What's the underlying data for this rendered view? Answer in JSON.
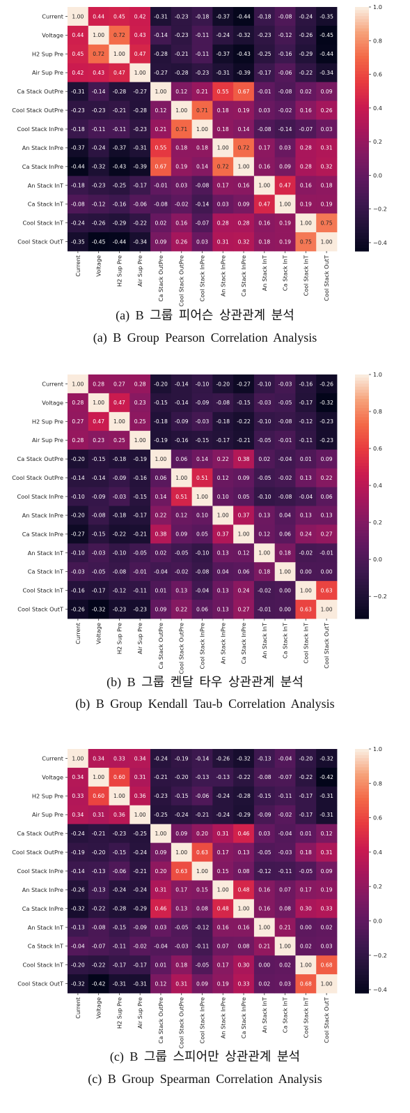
{
  "panels": [
    {
      "caption_ko": "(a) B 그룹 피어슨 상관관계 분석",
      "caption_en": "(a) B Group Pearson Correlation Analysis"
    },
    {
      "caption_ko": "(b) B 그룹 켄달 타우 상관관계 분석",
      "caption_en": "(b) B Group Kendall Tau-b Correlation Analysis"
    },
    {
      "caption_ko": "(c) B 그룹 스피어만 상관관계 분석",
      "caption_en": "(c) B Group Spearman Correlation Analysis"
    }
  ],
  "chart_data": [
    {
      "type": "heatmap",
      "title": "",
      "labels": [
        "Current",
        "Voltage",
        "H2 Sup Pre",
        "Air Sup Pre",
        "Ca Stack OutPre",
        "Cool Stack OutPre",
        "Cool Stack InPre",
        "An Stack InPre",
        "Ca Stack InPre",
        "An Stack InT",
        "Ca Stack InT",
        "Cool Stack InT",
        "Cool Stack OutT"
      ],
      "matrix": [
        [
          1.0,
          0.44,
          0.45,
          0.42,
          -0.31,
          -0.23,
          -0.18,
          -0.37,
          -0.44,
          -0.18,
          -0.08,
          -0.24,
          -0.35
        ],
        [
          0.44,
          1.0,
          0.72,
          0.43,
          -0.14,
          -0.23,
          -0.11,
          -0.24,
          -0.32,
          -0.23,
          -0.12,
          -0.26,
          -0.45
        ],
        [
          0.45,
          0.72,
          1.0,
          0.47,
          -0.28,
          -0.21,
          -0.11,
          -0.37,
          -0.43,
          -0.25,
          -0.16,
          -0.29,
          -0.44
        ],
        [
          0.42,
          0.43,
          0.47,
          1.0,
          -0.27,
          -0.28,
          -0.23,
          -0.31,
          -0.39,
          -0.17,
          -0.06,
          -0.22,
          -0.34
        ],
        [
          -0.31,
          -0.14,
          -0.28,
          -0.27,
          1.0,
          0.12,
          0.21,
          0.55,
          0.67,
          -0.01,
          -0.08,
          0.02,
          0.09
        ],
        [
          -0.23,
          -0.23,
          -0.21,
          -0.28,
          0.12,
          1.0,
          0.71,
          0.18,
          0.19,
          0.03,
          -0.02,
          0.16,
          0.26
        ],
        [
          -0.18,
          -0.11,
          -0.11,
          -0.23,
          0.21,
          0.71,
          1.0,
          0.18,
          0.14,
          -0.08,
          -0.14,
          -0.07,
          0.03
        ],
        [
          -0.37,
          -0.24,
          -0.37,
          -0.31,
          0.55,
          0.18,
          0.18,
          1.0,
          0.72,
          0.17,
          0.03,
          0.28,
          0.31
        ],
        [
          -0.44,
          -0.32,
          -0.43,
          -0.39,
          0.67,
          0.19,
          0.14,
          0.72,
          1.0,
          0.16,
          0.09,
          0.28,
          0.32
        ],
        [
          -0.18,
          -0.23,
          -0.25,
          -0.17,
          -0.01,
          0.03,
          -0.08,
          0.17,
          0.16,
          1.0,
          0.47,
          0.16,
          0.18
        ],
        [
          -0.08,
          -0.12,
          -0.16,
          -0.06,
          -0.08,
          -0.02,
          -0.14,
          0.03,
          0.09,
          0.47,
          1.0,
          0.19,
          0.19
        ],
        [
          -0.24,
          -0.26,
          -0.29,
          -0.22,
          0.02,
          0.16,
          -0.07,
          0.28,
          0.28,
          0.16,
          0.19,
          1.0,
          0.75
        ],
        [
          -0.35,
          -0.45,
          -0.44,
          -0.34,
          0.09,
          0.26,
          0.03,
          0.31,
          0.32,
          0.18,
          0.19,
          0.75,
          1.0
        ]
      ],
      "colorbar": {
        "vmin": -0.45,
        "vmax": 1.0,
        "ticks": [
          1.0,
          0.8,
          0.6,
          0.4,
          0.2,
          0.0,
          -0.2,
          -0.4
        ]
      },
      "colormap": "rocket"
    },
    {
      "type": "heatmap",
      "title": "",
      "labels": [
        "Current",
        "Voltage",
        "H2 Sup Pre",
        "Air Sup Pre",
        "Ca Stack OutPre",
        "Cool Stack OutPre",
        "Cool Stack InPre",
        "An Stack InPre",
        "Ca Stack InPre",
        "An Stack InT",
        "Ca Stack InT",
        "Cool Stack InT",
        "Cool Stack OutT"
      ],
      "matrix": [
        [
          1.0,
          0.28,
          0.27,
          0.28,
          -0.2,
          -0.14,
          -0.1,
          -0.2,
          -0.27,
          -0.1,
          -0.03,
          -0.16,
          -0.26
        ],
        [
          0.28,
          1.0,
          0.47,
          0.23,
          -0.15,
          -0.14,
          -0.09,
          -0.08,
          -0.15,
          -0.03,
          -0.05,
          -0.17,
          -0.32
        ],
        [
          0.27,
          0.47,
          1.0,
          0.25,
          -0.18,
          -0.09,
          -0.03,
          -0.18,
          -0.22,
          -0.1,
          -0.08,
          -0.12,
          -0.23
        ],
        [
          0.28,
          0.23,
          0.25,
          1.0,
          -0.19,
          -0.16,
          -0.15,
          -0.17,
          -0.21,
          -0.05,
          -0.01,
          -0.11,
          -0.23
        ],
        [
          -0.2,
          -0.15,
          -0.18,
          -0.19,
          1.0,
          0.06,
          0.14,
          0.22,
          0.38,
          0.02,
          -0.04,
          0.01,
          0.09
        ],
        [
          -0.14,
          -0.14,
          -0.09,
          -0.16,
          0.06,
          1.0,
          0.51,
          0.12,
          0.09,
          -0.05,
          -0.02,
          0.13,
          0.22
        ],
        [
          -0.1,
          -0.09,
          -0.03,
          -0.15,
          0.14,
          0.51,
          1.0,
          0.1,
          0.05,
          -0.1,
          -0.08,
          -0.04,
          0.06
        ],
        [
          -0.2,
          -0.08,
          -0.18,
          -0.17,
          0.22,
          0.12,
          0.1,
          1.0,
          0.37,
          0.13,
          0.04,
          0.13,
          0.13
        ],
        [
          -0.27,
          -0.15,
          -0.22,
          -0.21,
          0.38,
          0.09,
          0.05,
          0.37,
          1.0,
          0.12,
          0.06,
          0.24,
          0.27
        ],
        [
          -0.1,
          -0.03,
          -0.1,
          -0.05,
          0.02,
          -0.05,
          -0.1,
          0.13,
          0.12,
          1.0,
          0.18,
          -0.02,
          -0.01
        ],
        [
          -0.03,
          -0.05,
          -0.08,
          -0.01,
          -0.04,
          -0.02,
          -0.08,
          0.04,
          0.06,
          0.18,
          1.0,
          0.0,
          0.0
        ],
        [
          -0.16,
          -0.17,
          -0.12,
          -0.11,
          0.01,
          0.13,
          -0.04,
          0.13,
          0.24,
          -0.02,
          0.0,
          1.0,
          0.63
        ],
        [
          -0.26,
          -0.32,
          -0.23,
          -0.23,
          0.09,
          0.22,
          0.06,
          0.13,
          0.27,
          -0.01,
          0.0,
          0.63,
          1.0
        ]
      ],
      "colorbar": {
        "vmin": -0.32,
        "vmax": 1.0,
        "ticks": [
          1.0,
          0.8,
          0.6,
          0.4,
          0.2,
          0.0,
          -0.2
        ]
      },
      "colormap": "rocket"
    },
    {
      "type": "heatmap",
      "title": "",
      "labels": [
        "Current",
        "Voltage",
        "H2 Sup Pre",
        "Air Sup Pre",
        "Ca Stack OutPre",
        "Cool Stack OutPre",
        "Cool Stack InPre",
        "An Stack InPre",
        "Ca Stack InPre",
        "An Stack InT",
        "Ca Stack InT",
        "Cool Stack InT",
        "Cool Stack OutT"
      ],
      "matrix": [
        [
          1.0,
          0.34,
          0.33,
          0.34,
          -0.24,
          -0.19,
          -0.14,
          -0.26,
          -0.32,
          -0.13,
          -0.04,
          -0.2,
          -0.32
        ],
        [
          0.34,
          1.0,
          0.6,
          0.31,
          -0.21,
          -0.2,
          -0.13,
          -0.13,
          -0.22,
          -0.08,
          -0.07,
          -0.22,
          -0.42
        ],
        [
          0.33,
          0.6,
          1.0,
          0.36,
          -0.23,
          -0.15,
          -0.06,
          -0.24,
          -0.28,
          -0.15,
          -0.11,
          -0.17,
          -0.31
        ],
        [
          0.34,
          0.31,
          0.36,
          1.0,
          -0.25,
          -0.24,
          -0.21,
          -0.24,
          -0.29,
          -0.09,
          -0.02,
          -0.17,
          -0.31
        ],
        [
          -0.24,
          -0.21,
          -0.23,
          -0.25,
          1.0,
          0.09,
          0.2,
          0.31,
          0.46,
          0.03,
          -0.04,
          0.01,
          0.12
        ],
        [
          -0.19,
          -0.2,
          -0.15,
          -0.24,
          0.09,
          1.0,
          0.63,
          0.17,
          0.13,
          -0.05,
          -0.03,
          0.18,
          0.31
        ],
        [
          -0.14,
          -0.13,
          -0.06,
          -0.21,
          0.2,
          0.63,
          1.0,
          0.15,
          0.08,
          -0.12,
          -0.11,
          -0.05,
          0.09
        ],
        [
          -0.26,
          -0.13,
          -0.24,
          -0.24,
          0.31,
          0.17,
          0.15,
          1.0,
          0.48,
          0.16,
          0.07,
          0.17,
          0.19
        ],
        [
          -0.32,
          -0.22,
          -0.28,
          -0.29,
          0.46,
          0.13,
          0.08,
          0.48,
          1.0,
          0.16,
          0.08,
          0.3,
          0.33
        ],
        [
          -0.13,
          -0.08,
          -0.15,
          -0.09,
          0.03,
          -0.05,
          -0.12,
          0.16,
          0.16,
          1.0,
          0.21,
          0.0,
          0.02
        ],
        [
          -0.04,
          -0.07,
          -0.11,
          -0.02,
          -0.04,
          -0.03,
          -0.11,
          0.07,
          0.08,
          0.21,
          1.0,
          0.02,
          0.03
        ],
        [
          -0.2,
          -0.22,
          -0.17,
          -0.17,
          0.01,
          0.18,
          -0.05,
          0.17,
          0.3,
          0.0,
          0.02,
          1.0,
          0.68
        ],
        [
          -0.32,
          -0.42,
          -0.31,
          -0.31,
          0.12,
          0.31,
          0.09,
          0.19,
          0.33,
          0.02,
          0.03,
          0.68,
          1.0
        ]
      ],
      "colorbar": {
        "vmin": -0.42,
        "vmax": 1.0,
        "ticks": [
          1.0,
          0.8,
          0.6,
          0.4,
          0.2,
          0.0,
          -0.2,
          -0.4
        ]
      },
      "colormap": "rocket"
    }
  ]
}
